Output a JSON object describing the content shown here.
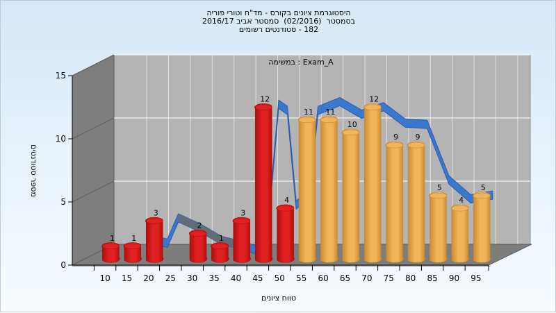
{
  "chart_data": {
    "type": "bar",
    "title_lines": [
      "היסטוגרמת ציונים בקורס - מד\"ח וטורי פוריה",
      "בסמסטר  (02/2016)  סמסטר אביב 2016/17",
      "182 - סטודנטים רשומים"
    ],
    "annotation": "במשימה : Exam_A",
    "xlabel": "טווח ציונים",
    "ylabel": "מספר סטודנטים",
    "x_ticks": [
      "10",
      "15",
      "20",
      "25",
      "30",
      "35",
      "40",
      "45",
      "50",
      "55",
      "60",
      "65",
      "70",
      "75",
      "80",
      "85",
      "90",
      "95"
    ],
    "y_ticks": [
      "0",
      "5",
      "10",
      "15"
    ],
    "ylim": [
      0,
      15
    ],
    "grid": true,
    "series": [
      {
        "color_top": "#e02020",
        "color_side": "#a80c0c",
        "categories": [
          "10",
          "15",
          "20",
          "30",
          "35",
          "40",
          "45",
          "50"
        ],
        "values": [
          1,
          1,
          3,
          2,
          1,
          3,
          12,
          4
        ]
      },
      {
        "color_top": "#f0b45a",
        "color_side": "#c9862c",
        "categories": [
          "55",
          "60",
          "65",
          "70",
          "75",
          "80",
          "85",
          "90",
          "95"
        ],
        "values": [
          11,
          11,
          10,
          12,
          9,
          9,
          5,
          4,
          5
        ]
      }
    ],
    "curve": {
      "color": "#3a78d0",
      "shadow_color": "#6a6a6a",
      "x": [
        20,
        22.5,
        25,
        30,
        35,
        40,
        45,
        48,
        50,
        52,
        55,
        57,
        62,
        67,
        72,
        77,
        82,
        87,
        92,
        97
      ],
      "y": [
        1.2,
        1.0,
        3.0,
        2.2,
        1.2,
        0.8,
        0.2,
        12.0,
        11.5,
        4.0,
        5.0,
        11.5,
        12.2,
        11.2,
        11.8,
        10.5,
        10.4,
        6.0,
        4.5,
        4.8
      ]
    },
    "colors": {
      "floor": "#7d7d7d",
      "back_wall": "#b4b4b4",
      "left_wall": "#7e7e7e",
      "grid": "#ffffff"
    }
  }
}
